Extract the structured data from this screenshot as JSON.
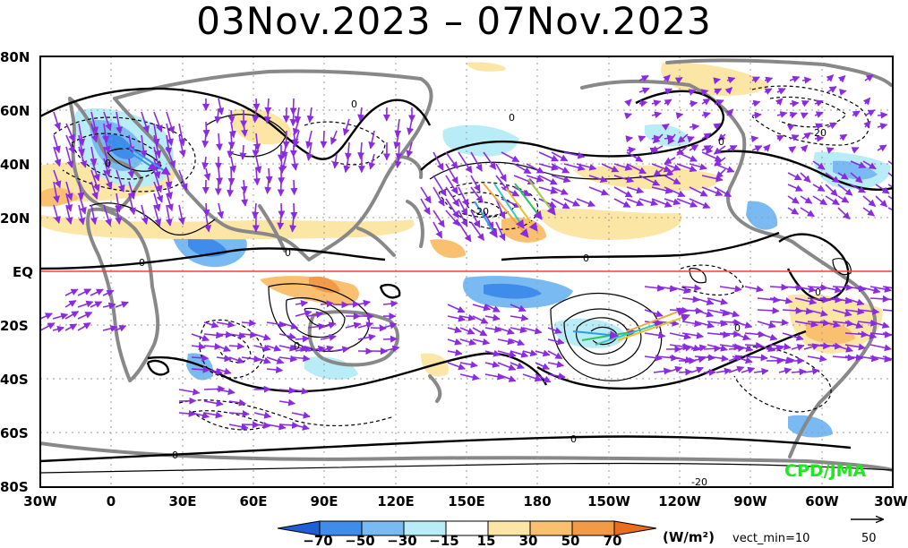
{
  "title": "03Nov.2023 – 07Nov.2023",
  "lat_labels": [
    "80N",
    "60N",
    "40N",
    "20N",
    "EQ",
    "20S",
    "40S",
    "60S",
    "80S"
  ],
  "lon_labels": [
    "30W",
    "0",
    "30E",
    "60E",
    "90E",
    "120E",
    "150E",
    "180",
    "150W",
    "120W",
    "90W",
    "60W",
    "30W"
  ],
  "colorbar": {
    "ticks": [
      "−70",
      "−50",
      "−30",
      "−15",
      "15",
      "30",
      "50",
      "70"
    ],
    "colors": [
      "#1f5fd6",
      "#3f8cea",
      "#79baf2",
      "#b8ecf6",
      "#ffffff",
      "#fbe6a6",
      "#f9c070",
      "#f29a45",
      "#ea6d1e"
    ],
    "units": "(W/m²)",
    "vector_min": "vect_min=10"
  },
  "reference_vector": {
    "value": "50"
  },
  "contour_labels": [
    "0",
    "0",
    "0",
    "0",
    "0",
    "0",
    "0",
    "0",
    "0",
    "0",
    "0",
    "0",
    "-20",
    "-20",
    "-20"
  ],
  "credit": "CPD/JMA",
  "colors": {
    "equator": "#ff3b3b",
    "coast": "#888888",
    "vector": "#8a2be2",
    "credit": "#1fe81f"
  }
}
